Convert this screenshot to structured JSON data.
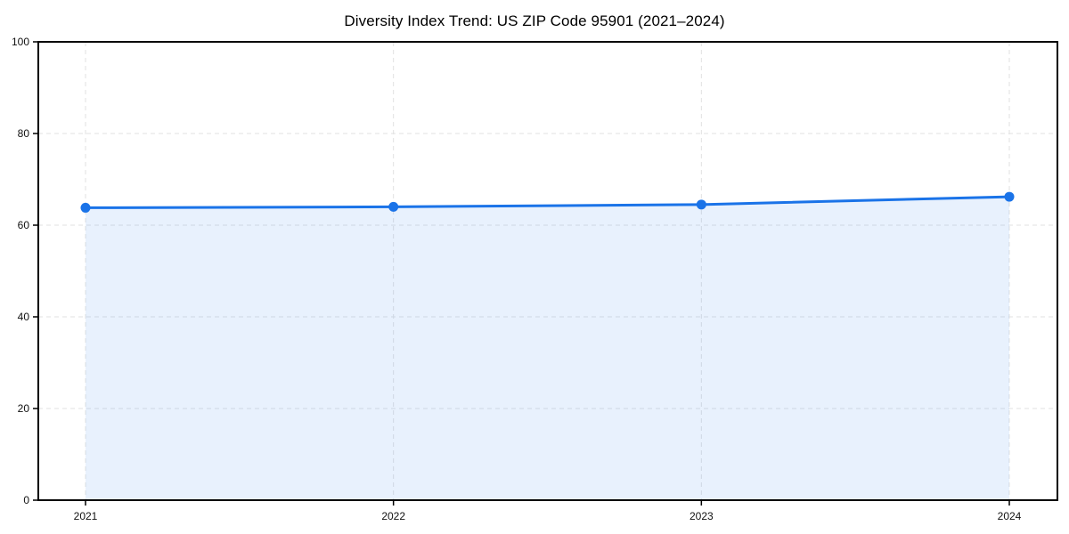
{
  "chart_data": {
    "type": "area",
    "title": "Diversity Index Trend: US ZIP Code 95901 (2021–2024)",
    "x": [
      2021,
      2022,
      2023,
      2024
    ],
    "categories": [
      "2021",
      "2022",
      "2023",
      "2024"
    ],
    "series": [
      {
        "name": "Diversity Index",
        "values": [
          63.8,
          64.0,
          64.5,
          66.2
        ]
      }
    ],
    "xlabel": "",
    "ylabel": "",
    "ylim": [
      0,
      100
    ],
    "yticks": [
      0,
      20,
      40,
      60,
      80,
      100
    ],
    "grid": "dashed both axes",
    "legend": "none",
    "colors": {
      "line": "#1a73e8",
      "marker": "#1a73e8",
      "fill": "rgba(26,115,232,0.10)",
      "gridline": "#e2e2e2",
      "spine": "#000000",
      "tick_label": "#111111",
      "background": "#ffffff"
    }
  }
}
